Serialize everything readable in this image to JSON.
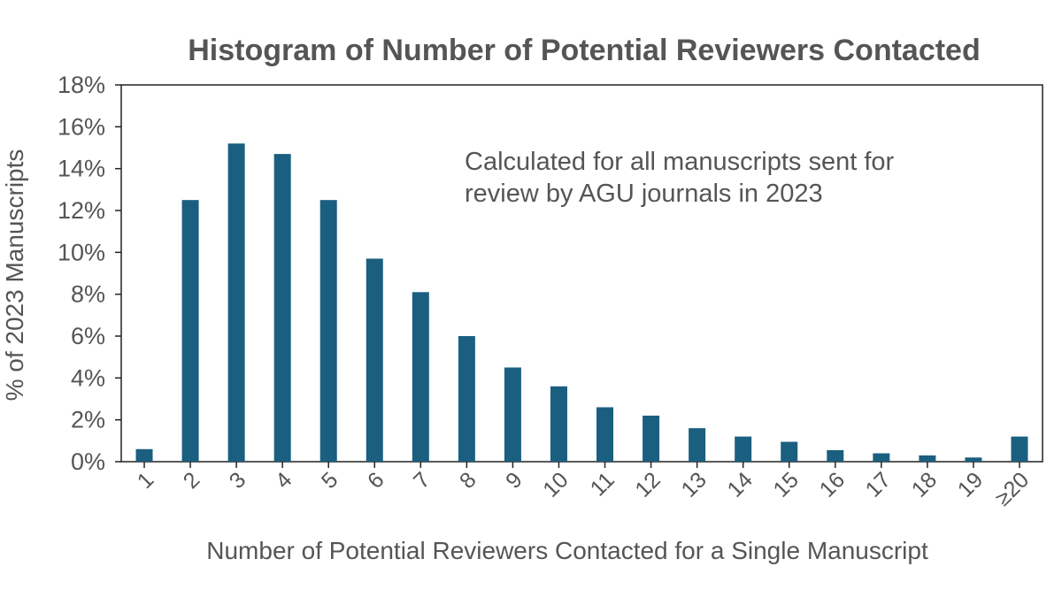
{
  "chart_data": {
    "type": "bar",
    "title": "Histogram of Number of Potential Reviewers Contacted",
    "xlabel": "Number of Potential Reviewers Contacted for a Single Manuscript",
    "ylabel": "% of 2023 Manuscripts",
    "categories": [
      "1",
      "2",
      "3",
      "4",
      "5",
      "6",
      "7",
      "8",
      "9",
      "10",
      "11",
      "12",
      "13",
      "14",
      "15",
      "16",
      "17",
      "18",
      "19",
      "≥20"
    ],
    "values": [
      0.6,
      12.5,
      15.2,
      14.7,
      12.5,
      9.7,
      8.1,
      6.0,
      4.5,
      3.6,
      2.6,
      2.2,
      1.6,
      1.2,
      0.95,
      0.55,
      0.4,
      0.3,
      0.2,
      1.2
    ],
    "ylim": [
      0,
      18
    ],
    "yticks": [
      0,
      2,
      4,
      6,
      8,
      10,
      12,
      14,
      16,
      18
    ],
    "ytick_labels": [
      "0%",
      "2%",
      "4%",
      "6%",
      "8%",
      "10%",
      "12%",
      "14%",
      "16%",
      "18%"
    ],
    "annotation": [
      "Calculated for all manuscripts sent for",
      "review by AGU journals in 2023"
    ],
    "grid": false,
    "bar_color": "#1b5f80"
  }
}
